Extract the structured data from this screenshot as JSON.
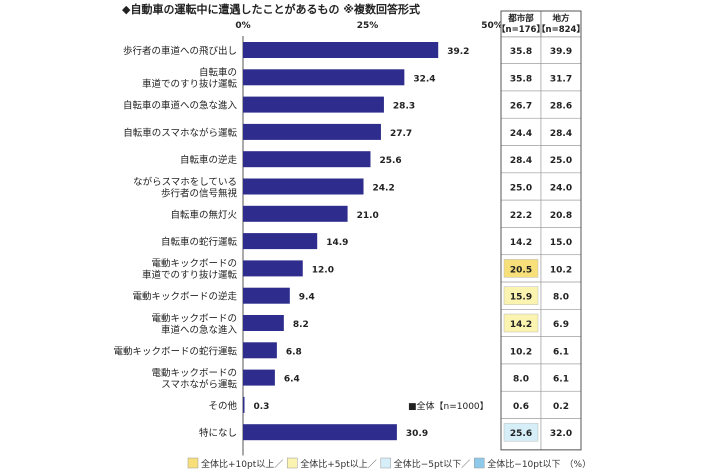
{
  "chart_data": {
    "type": "bar",
    "title": "◆自動車の運転中に遭遇したことがあるもの ※複数回答形式",
    "xlim": [
      0,
      50
    ],
    "tick_labels": [
      "0%",
      "25%",
      "50%"
    ],
    "series_legend": "■全体【n=1000】",
    "categories": [
      [
        "歩行者の車道への飛び出し"
      ],
      [
        "自転車の",
        "車道でのすり抜け運転"
      ],
      [
        "自転車の車道への急な進入"
      ],
      [
        "自転車のスマホながら運転"
      ],
      [
        "自転車の逆走"
      ],
      [
        "ながらスマホをしている",
        "歩行者の信号無視"
      ],
      [
        "自転車の無灯火"
      ],
      [
        "自転車の蛇行運転"
      ],
      [
        "電動キックボードの",
        "車道でのすり抜け運転"
      ],
      [
        "電動キックボードの逆走"
      ],
      [
        "電動キックボードの",
        "車道への急な進入"
      ],
      [
        "電動キックボードの蛇行運転"
      ],
      [
        "電動キックボードの",
        "スマホながら運転"
      ],
      [
        "その他"
      ],
      [
        "特になし"
      ]
    ],
    "values": [
      39.2,
      32.4,
      28.3,
      27.7,
      25.6,
      24.2,
      21.0,
      14.9,
      12.0,
      9.4,
      8.2,
      6.8,
      6.4,
      0.3,
      30.9
    ],
    "value_labels": [
      "39.2",
      "32.4",
      "28.3",
      "27.7",
      "25.6",
      "24.2",
      "21.0",
      "14.9",
      "12.0",
      "9.4",
      "8.2",
      "6.8",
      "6.4",
      "0.3",
      "30.9"
    ],
    "table": {
      "headers": [
        [
          "都市部",
          "【n=176】"
        ],
        [
          "地方",
          "【n=824】"
        ]
      ],
      "urban": [
        "35.8",
        "35.8",
        "26.7",
        "24.4",
        "28.4",
        "25.0",
        "22.2",
        "14.2",
        "20.5",
        "15.9",
        "14.2",
        "10.2",
        "8.0",
        "0.6",
        "25.6"
      ],
      "rural": [
        "39.9",
        "31.7",
        "28.6",
        "28.4",
        "25.0",
        "24.0",
        "20.8",
        "15.0",
        "10.2",
        "8.0",
        "6.9",
        "6.1",
        "6.1",
        "0.2",
        "32.0"
      ],
      "urban_highlight": [
        "",
        "",
        "",
        "",
        "",
        "",
        "",
        "",
        "plus10",
        "plus5",
        "plus5",
        "",
        "",
        "",
        "minus5"
      ],
      "rural_highlight": [
        "",
        "",
        "",
        "",
        "",
        "",
        "",
        "",
        "",
        "",
        "",
        "",
        "",
        "",
        ""
      ]
    },
    "footer_legend": [
      {
        "text": "全体比+10pt以上／",
        "color": "#f7e07a"
      },
      {
        "text": "全体比+5pt以上／",
        "color": "#fbf3b0"
      },
      {
        "text": "全体比−5pt以下／",
        "color": "#d6eef8"
      },
      {
        "text": "全体比−10pt以下",
        "color": "#8fc9ea"
      },
      {
        "text": "（%）",
        "color": ""
      }
    ],
    "colors": {
      "bar": "#2e2c8c",
      "plus10": "#f7e07a",
      "plus5": "#fbf3b0",
      "minus5": "#d6eef8",
      "minus10": "#8fc9ea"
    }
  }
}
